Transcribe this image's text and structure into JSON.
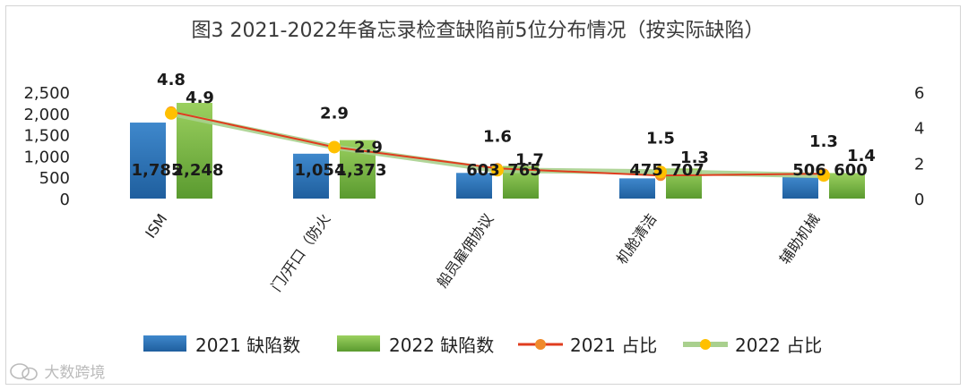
{
  "title": "图3  2021-2022年备忘录检查缺陷前5位分布情况（按实际缺陷）",
  "watermark": "大数跨境",
  "watermark_icon": "wechat-logo-icon",
  "colors": {
    "bar2021": "#1f5f9e",
    "bar2021_light": "#3f88cc",
    "bar2022": "#5a9a2f",
    "bar2022_light": "#9bd05f",
    "line2021": "#e03c1e",
    "marker2021": "#f08a2c",
    "line2022": "#a9d08e",
    "marker2022": "#ffc000"
  },
  "chart_data": {
    "type": "bar+line",
    "title": "图3  2021-2022年备忘录检查缺陷前5位分布情况（按实际缺陷）",
    "categories": [
      "ISM",
      "门/开口（防火",
      "船员雇佣协议",
      "机舱清洁",
      "辅助机械"
    ],
    "y_left": {
      "ylim": [
        0,
        2500
      ],
      "ticks": [
        "0",
        "500",
        "1,000",
        "1,500",
        "2,000",
        "2,500"
      ],
      "tick_values": [
        0,
        500,
        1000,
        1500,
        2000,
        2500
      ]
    },
    "y_right": {
      "ylim": [
        0,
        6
      ],
      "ticks": [
        "0",
        "2",
        "4",
        "6"
      ],
      "tick_values": [
        0,
        2,
        4,
        6
      ]
    },
    "series": [
      {
        "name": "2021 缺陷数",
        "kind": "bar",
        "axis": "left",
        "values": [
          1785,
          1054,
          603,
          475,
          506
        ],
        "labels": [
          "1,785",
          "1,054",
          "603",
          "475",
          "506"
        ]
      },
      {
        "name": "2022 缺陷数",
        "kind": "bar",
        "axis": "left",
        "values": [
          2248,
          1373,
          765,
          707,
          600
        ],
        "labels": [
          "2,248",
          "1,373",
          "765",
          "707",
          "600"
        ]
      },
      {
        "name": "2021 占比",
        "kind": "line",
        "axis": "right",
        "values": [
          4.9,
          2.9,
          1.7,
          1.3,
          1.4
        ],
        "labels": [
          "4.9",
          "2.9",
          "1.7",
          "1.3",
          "1.4"
        ]
      },
      {
        "name": "2022 占比",
        "kind": "line",
        "axis": "right",
        "values": [
          4.8,
          2.9,
          1.6,
          1.5,
          1.3
        ],
        "labels": [
          "4.8",
          "2.9",
          "1.6",
          "1.5",
          "1.3"
        ]
      }
    ],
    "legend_position": "bottom",
    "grid": false
  }
}
